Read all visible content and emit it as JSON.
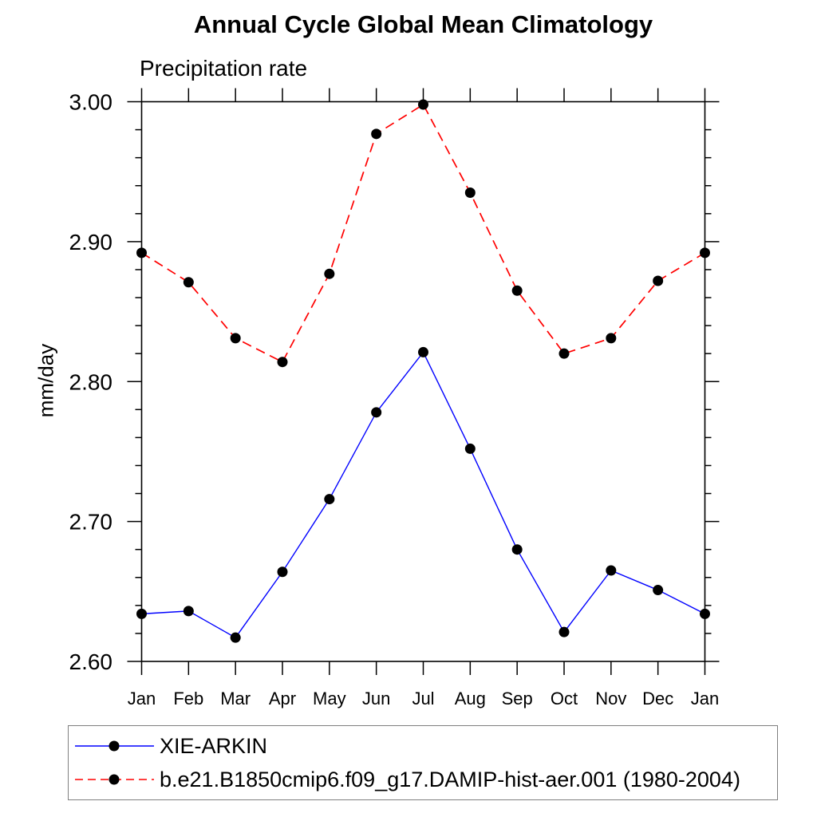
{
  "chart_data": {
    "type": "line",
    "title": "Annual Cycle Global Mean Climatology",
    "subtitle": "Precipitation rate",
    "ylabel": "mm/day",
    "x_labels": [
      "Jan",
      "Feb",
      "Mar",
      "Apr",
      "May",
      "Jun",
      "Jul",
      "Aug",
      "Sep",
      "Oct",
      "Nov",
      "Dec",
      "Jan"
    ],
    "ylim": [
      2.6,
      3.0
    ],
    "ytick_values": [
      3.0,
      2.9,
      2.8,
      2.7,
      2.6
    ],
    "ytick_labels": [
      "3.00",
      "2.90",
      "2.80",
      "2.70",
      "2.60"
    ],
    "ytick_minor_step": 0.02,
    "grid": false,
    "legend_position": "bottom-left-box",
    "axis_color": "#000000",
    "marker_color": "#000000",
    "series": [
      {
        "name": "XIE-ARKIN",
        "color": "#0000ff",
        "line_style": "solid",
        "marker": "circle",
        "values": [
          2.634,
          2.636,
          2.617,
          2.664,
          2.716,
          2.778,
          2.821,
          2.752,
          2.68,
          2.621,
          2.665,
          2.651,
          2.634
        ]
      },
      {
        "name": "b.e21.B1850cmip6.f09_g17.DAMIP-hist-aer.001 (1980-2004)",
        "color": "#ff0000",
        "line_style": "dashed",
        "marker": "circle",
        "values": [
          2.892,
          2.871,
          2.831,
          2.814,
          2.877,
          2.977,
          2.998,
          2.935,
          2.865,
          2.82,
          2.831,
          2.872,
          2.892
        ]
      }
    ]
  }
}
